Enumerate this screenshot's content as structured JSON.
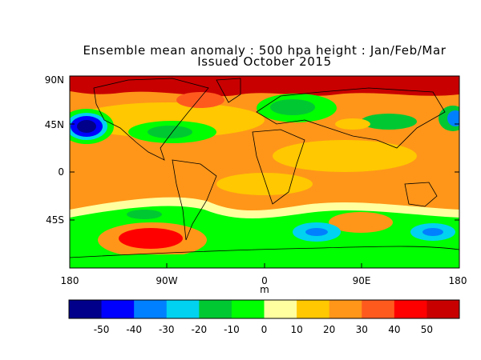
{
  "title_line1": "Ensemble mean anomaly : 500 hpa height : Jan/Feb/Mar",
  "title_line2": "Issued October 2015",
  "map": {
    "lat_ticks": [
      "90N",
      "45N",
      "0",
      "45S"
    ],
    "lon_ticks": [
      "180",
      "90W",
      "0",
      "90E",
      "180"
    ],
    "unit_label": "m"
  },
  "colorbar": {
    "colors": [
      "#00008b",
      "#0000ff",
      "#0080ff",
      "#00d2f0",
      "#00c832",
      "#00ff00",
      "#ffffa0",
      "#ffc800",
      "#ff9619",
      "#ff5a1e",
      "#ff0000",
      "#c80000"
    ],
    "tick_labels": [
      "-50",
      "-40",
      "-30",
      "-20",
      "-10",
      "0",
      "10",
      "20",
      "30",
      "40",
      "50"
    ]
  },
  "regions": [
    {
      "name": "arctic-high",
      "color": "#c80000"
    },
    {
      "name": "north-pacific-low",
      "color": "#00008b"
    },
    {
      "name": "north-america-low",
      "color": "#00c832"
    },
    {
      "name": "scandinavia-low",
      "color": "#00c832"
    },
    {
      "name": "south-pacific-high",
      "color": "#ff0000"
    },
    {
      "name": "southern-indian-low",
      "color": "#0080ff"
    }
  ]
}
